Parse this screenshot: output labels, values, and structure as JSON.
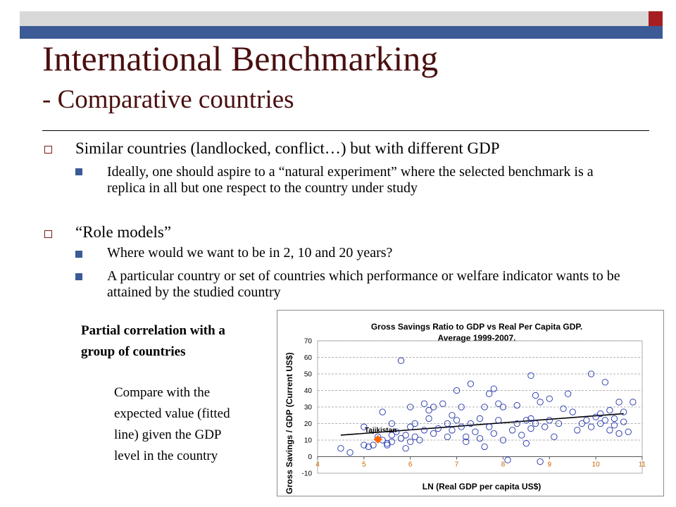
{
  "title": "International Benchmarking",
  "subtitle": "- Comparative countries",
  "bullets": [
    {
      "text": "Similar countries (landlocked, conflict…) but with different GDP",
      "subs": [
        "Ideally, one should aspire to a “natural experiment” where the selected benchmark is a replica in all but one respect to the country under study"
      ]
    },
    {
      "text": "“Role models”",
      "subs": [
        "Where would we want to be in 2, 10 and 20 years?",
        "A particular country or set of countries which performance or welfare indicator wants to be attained by the studied country"
      ]
    }
  ],
  "side": {
    "heading": "Partial correlation with a group of countries",
    "text": "Compare with the expected value (fitted line) given the GDP level in the country"
  },
  "colors": {
    "title": "#4a0f0f",
    "accent_blue": "#3b5a96",
    "accent_red": "#a51f22",
    "marker": "#2233aa",
    "highlight": "#ff6600"
  },
  "chart_data": {
    "type": "scatter",
    "title": "Gross Savings Ratio to GDP vs Real Per Capita GDP. Average 1999-2007.",
    "title_lines": [
      "Gross Savings Ratio to GDP vs Real Per Capita GDP.",
      "Average 1999-2007."
    ],
    "xlabel": "LN (Real GDP per capita US$)",
    "ylabel": "Gross Savings / GDP (Current US$)",
    "xlim": [
      4,
      11
    ],
    "ylim": [
      -10,
      70
    ],
    "xticks": [
      "4",
      "5",
      "6",
      "7",
      "8",
      "9",
      "10",
      "11"
    ],
    "yticks": [
      "-10",
      "0",
      "10",
      "20",
      "30",
      "40",
      "50",
      "60",
      "70"
    ],
    "grid": "horizontal dashed",
    "trendline": [
      [
        4.5,
        13
      ],
      [
        10.6,
        26
      ]
    ],
    "highlight": {
      "label": "Tajikistan",
      "x": 5.3,
      "y": 10.5
    },
    "points": [
      [
        4.5,
        5
      ],
      [
        4.7,
        2.5
      ],
      [
        5.0,
        7
      ],
      [
        5.0,
        18
      ],
      [
        5.1,
        6
      ],
      [
        5.2,
        7
      ],
      [
        5.3,
        12
      ],
      [
        5.4,
        27
      ],
      [
        5.4,
        10
      ],
      [
        5.5,
        7
      ],
      [
        5.5,
        8
      ],
      [
        5.6,
        13
      ],
      [
        5.6,
        9
      ],
      [
        5.6,
        20
      ],
      [
        5.7,
        15
      ],
      [
        5.8,
        58
      ],
      [
        5.8,
        11
      ],
      [
        5.9,
        5
      ],
      [
        5.9,
        13
      ],
      [
        6.0,
        30
      ],
      [
        6.0,
        9
      ],
      [
        6.0,
        18
      ],
      [
        6.1,
        12
      ],
      [
        6.1,
        20
      ],
      [
        6.2,
        10
      ],
      [
        6.3,
        32
      ],
      [
        6.3,
        16
      ],
      [
        6.4,
        23
      ],
      [
        6.4,
        28
      ],
      [
        6.5,
        30
      ],
      [
        6.5,
        14
      ],
      [
        6.6,
        17
      ],
      [
        6.7,
        32
      ],
      [
        6.8,
        12
      ],
      [
        6.8,
        20
      ],
      [
        6.9,
        16
      ],
      [
        6.9,
        25
      ],
      [
        7.0,
        40
      ],
      [
        7.0,
        22
      ],
      [
        7.1,
        18
      ],
      [
        7.1,
        30
      ],
      [
        7.2,
        12
      ],
      [
        7.2,
        9
      ],
      [
        7.3,
        20
      ],
      [
        7.3,
        44
      ],
      [
        7.4,
        15
      ],
      [
        7.5,
        11
      ],
      [
        7.5,
        23
      ],
      [
        7.6,
        30
      ],
      [
        7.6,
        6
      ],
      [
        7.7,
        38
      ],
      [
        7.7,
        18
      ],
      [
        7.8,
        41
      ],
      [
        7.8,
        14
      ],
      [
        7.9,
        32
      ],
      [
        7.9,
        22
      ],
      [
        8.0,
        10
      ],
      [
        8.0,
        30
      ],
      [
        8.1,
        -2
      ],
      [
        8.2,
        16
      ],
      [
        8.3,
        31
      ],
      [
        8.3,
        20
      ],
      [
        8.4,
        13
      ],
      [
        8.5,
        8
      ],
      [
        8.5,
        22
      ],
      [
        8.6,
        49
      ],
      [
        8.6,
        17
      ],
      [
        8.6,
        23
      ],
      [
        8.7,
        37
      ],
      [
        8.7,
        20
      ],
      [
        8.8,
        -3
      ],
      [
        8.8,
        33
      ],
      [
        8.9,
        18
      ],
      [
        9.0,
        22
      ],
      [
        9.0,
        35
      ],
      [
        9.1,
        12
      ],
      [
        9.2,
        20
      ],
      [
        9.3,
        29
      ],
      [
        9.4,
        38
      ],
      [
        9.5,
        27
      ],
      [
        9.6,
        16
      ],
      [
        9.7,
        20
      ],
      [
        9.8,
        22
      ],
      [
        9.9,
        50
      ],
      [
        9.9,
        18
      ],
      [
        10.0,
        24
      ],
      [
        10.1,
        20
      ],
      [
        10.1,
        26
      ],
      [
        10.2,
        45
      ],
      [
        10.2,
        22
      ],
      [
        10.3,
        16
      ],
      [
        10.3,
        28
      ],
      [
        10.4,
        23
      ],
      [
        10.4,
        19
      ],
      [
        10.5,
        33
      ],
      [
        10.5,
        14
      ],
      [
        10.6,
        27
      ],
      [
        10.6,
        21
      ],
      [
        10.7,
        15
      ],
      [
        10.8,
        33
      ]
    ]
  }
}
